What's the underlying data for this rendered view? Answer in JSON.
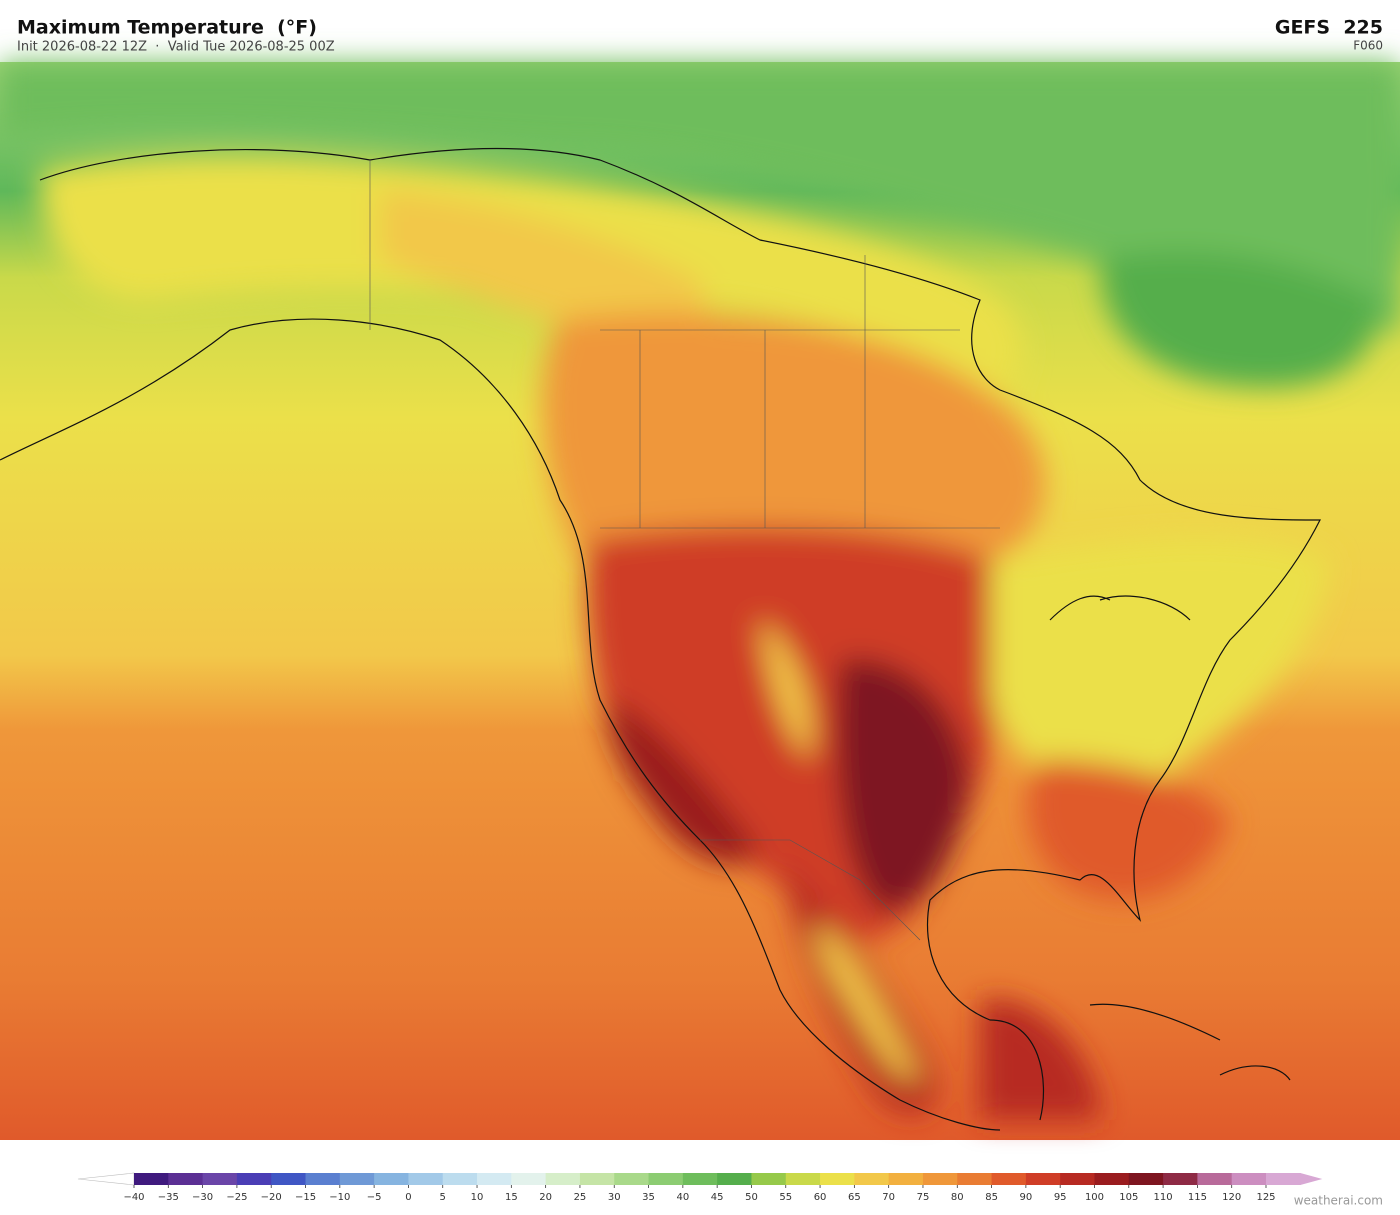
{
  "header": {
    "title": "Maximum Temperature  (°F)",
    "subtitle": "Init 2026-08-22 12Z  ·  Valid Tue 2026-08-25 00Z",
    "model": "GEFS  225",
    "forecast": "F060"
  },
  "colorbar": {
    "ticks": [
      {
        "value": -40,
        "label": "−40"
      },
      {
        "value": -35,
        "label": "−35"
      },
      {
        "value": -30,
        "label": "−30"
      },
      {
        "value": -25,
        "label": "−25"
      },
      {
        "value": -20,
        "label": "−20"
      },
      {
        "value": -15,
        "label": "−15"
      },
      {
        "value": -10,
        "label": "−10"
      },
      {
        "value": -5,
        "label": "−5"
      },
      0,
      5,
      10,
      15,
      20,
      25,
      30,
      35,
      40,
      45,
      50,
      55,
      60,
      65,
      70,
      75,
      80,
      85,
      90,
      95,
      100,
      105,
      110,
      115,
      120,
      125
    ],
    "colors": [
      "#3f1a7e",
      "#5b2f94",
      "#6a45a8",
      "#4a3db5",
      "#3f56c4",
      "#5a7fd0",
      "#6f99d6",
      "#86b4e0",
      "#a2c9e8",
      "#bcdcee",
      "#d4eaf2",
      "#e3f2ec",
      "#d6eec9",
      "#c5e4a6",
      "#a9d98a",
      "#8ccc72",
      "#6ebd5c",
      "#55ae4c",
      "#96c94a",
      "#c9d94a",
      "#ebe04a",
      "#f2c84a",
      "#f2b03f",
      "#ef973a",
      "#e97c33",
      "#e05a2b",
      "#cf3d27",
      "#b72a22",
      "#9a1c1f",
      "#7e1520",
      "#8e2a45",
      "#b86a9a",
      "#cc8ec0",
      "#d8a8d4"
    ],
    "under_color": "#ffffff",
    "over_color": "#d8a8d4"
  },
  "footer": {
    "credit": "weatherai.com"
  }
}
